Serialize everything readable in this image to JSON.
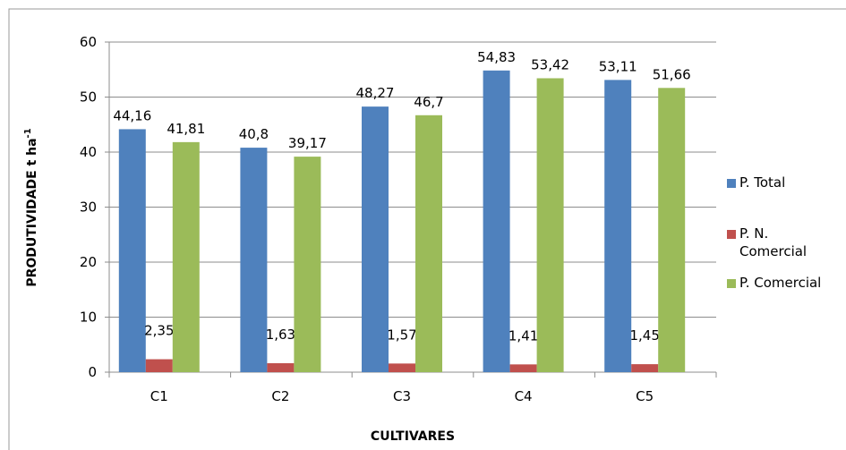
{
  "chart_data": {
    "type": "bar",
    "y_label": "PRODUTIVIDADE t ha",
    "y_label_sup": "-1",
    "x_label": "CULTIVARES",
    "categories": [
      "C1",
      "C2",
      "C3",
      "C4",
      "C5"
    ],
    "series": [
      {
        "name": "P. Total",
        "color": "#4f81bd",
        "values": [
          44.16,
          40.8,
          48.27,
          54.83,
          53.11
        ],
        "value_labels": [
          "44,16",
          "40,8",
          "48,27",
          "54,83",
          "53,11"
        ]
      },
      {
        "name": "P. N. Comercial",
        "color": "#c0504d",
        "values": [
          2.35,
          1.63,
          1.57,
          1.41,
          1.45
        ],
        "value_labels": [
          "2,35",
          "1,63",
          "1,57",
          "1,41",
          "1,45"
        ]
      },
      {
        "name": "P. Comercial",
        "color": "#9bbb59",
        "values": [
          41.81,
          39.17,
          46.7,
          53.42,
          51.66
        ],
        "value_labels": [
          "41,81",
          "39,17",
          "46,7",
          "53,42",
          "51,66"
        ]
      }
    ],
    "ylim": [
      0,
      60
    ],
    "yticks": [
      0,
      10,
      20,
      30,
      40,
      50,
      60
    ],
    "grid": true,
    "legend": "right"
  }
}
